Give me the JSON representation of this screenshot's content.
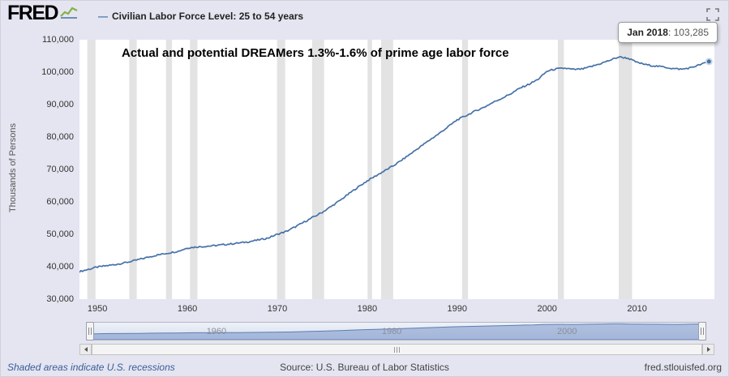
{
  "header": {
    "logo": "FRED",
    "legend_dash": "—",
    "legend_label": "Civilian Labor Force Level: 25 to 54 years"
  },
  "tooltip": {
    "date": "Jan 2018",
    "separator": ": ",
    "value": "103,285"
  },
  "annotation": "Actual and potential DREAMers 1.3%-1.6% of prime age labor force",
  "y_axis_label": "Thousands of Persons",
  "footer": {
    "left": "Shaded areas indicate U.S. recessions",
    "center": "Source: U.S. Bureau of Labor Statistics",
    "right": "fred.stlouisfed.org"
  },
  "icons": {
    "fullscreen": "corner-brackets",
    "scroll_left": "left-triangle",
    "scroll_right": "right-triangle",
    "logo_sparkline": "green-line-chart"
  },
  "chart_data": {
    "type": "line",
    "title": "Civilian Labor Force Level: 25 to 54 years",
    "annotation": "Actual and potential DREAMers 1.3%-1.6% of prime age labor force",
    "ylabel": "Thousands of Persons",
    "xlabel": "",
    "series_name": "Civilian Labor Force Level: 25 to 54 years",
    "line_color": "#4572a7",
    "recession_color": "#e3e3e3",
    "grid": false,
    "legend_position": "top-left",
    "xlim": [
      1948,
      2018.6
    ],
    "ylim": [
      30000,
      110000
    ],
    "minimap_ymax": 112000,
    "y_ticks": [
      30000,
      40000,
      50000,
      60000,
      70000,
      80000,
      90000,
      100000,
      110000
    ],
    "x_ticks": [
      1950,
      1960,
      1970,
      1980,
      1990,
      2000,
      2010
    ],
    "minimap_labels": [
      1960,
      1980,
      2000
    ],
    "last_point": {
      "x": 2018.05,
      "label": "Jan 2018",
      "value": 103285
    },
    "x": [
      1948,
      1949,
      1950,
      1951,
      1952,
      1953,
      1954,
      1955,
      1956,
      1957,
      1958,
      1959,
      1960,
      1961,
      1962,
      1963,
      1964,
      1965,
      1966,
      1967,
      1968,
      1969,
      1970,
      1971,
      1972,
      1973,
      1974,
      1975,
      1976,
      1977,
      1978,
      1979,
      1980,
      1981,
      1982,
      1983,
      1984,
      1985,
      1986,
      1987,
      1988,
      1989,
      1990,
      1991,
      1992,
      1993,
      1994,
      1995,
      1996,
      1997,
      1998,
      1999,
      2000,
      2001,
      2002,
      2003,
      2004,
      2005,
      2006,
      2007,
      2008,
      2009,
      2010,
      2011,
      2012,
      2013,
      2014,
      2015,
      2016,
      2017,
      2018
    ],
    "values": [
      38500,
      39200,
      39900,
      40300,
      40700,
      41200,
      41800,
      42500,
      43200,
      43800,
      44300,
      44800,
      45800,
      46100,
      46300,
      46500,
      46800,
      47100,
      47400,
      47800,
      48300,
      48900,
      50000,
      50900,
      52300,
      53800,
      55300,
      56800,
      58600,
      60500,
      62600,
      64600,
      66500,
      68100,
      69700,
      71300,
      73200,
      75200,
      77200,
      79200,
      81100,
      83200,
      85300,
      86600,
      88000,
      89200,
      90700,
      92000,
      93400,
      95100,
      96300,
      97800,
      100300,
      101000,
      101200,
      100800,
      101000,
      101800,
      102700,
      103700,
      104700,
      104300,
      103000,
      102300,
      101900,
      101600,
      101100,
      100900,
      101400,
      102300,
      103285
    ],
    "recessions": [
      [
        1948.87,
        1949.79
      ],
      [
        1953.54,
        1954.37
      ],
      [
        1957.62,
        1958.29
      ],
      [
        1960.29,
        1961.12
      ],
      [
        1969.96,
        1970.87
      ],
      [
        1973.87,
        1975.2
      ],
      [
        1980.04,
        1980.54
      ],
      [
        1981.54,
        1982.87
      ],
      [
        1990.54,
        1991.2
      ],
      [
        2001.2,
        2001.87
      ],
      [
        2007.96,
        2009.45
      ]
    ]
  }
}
